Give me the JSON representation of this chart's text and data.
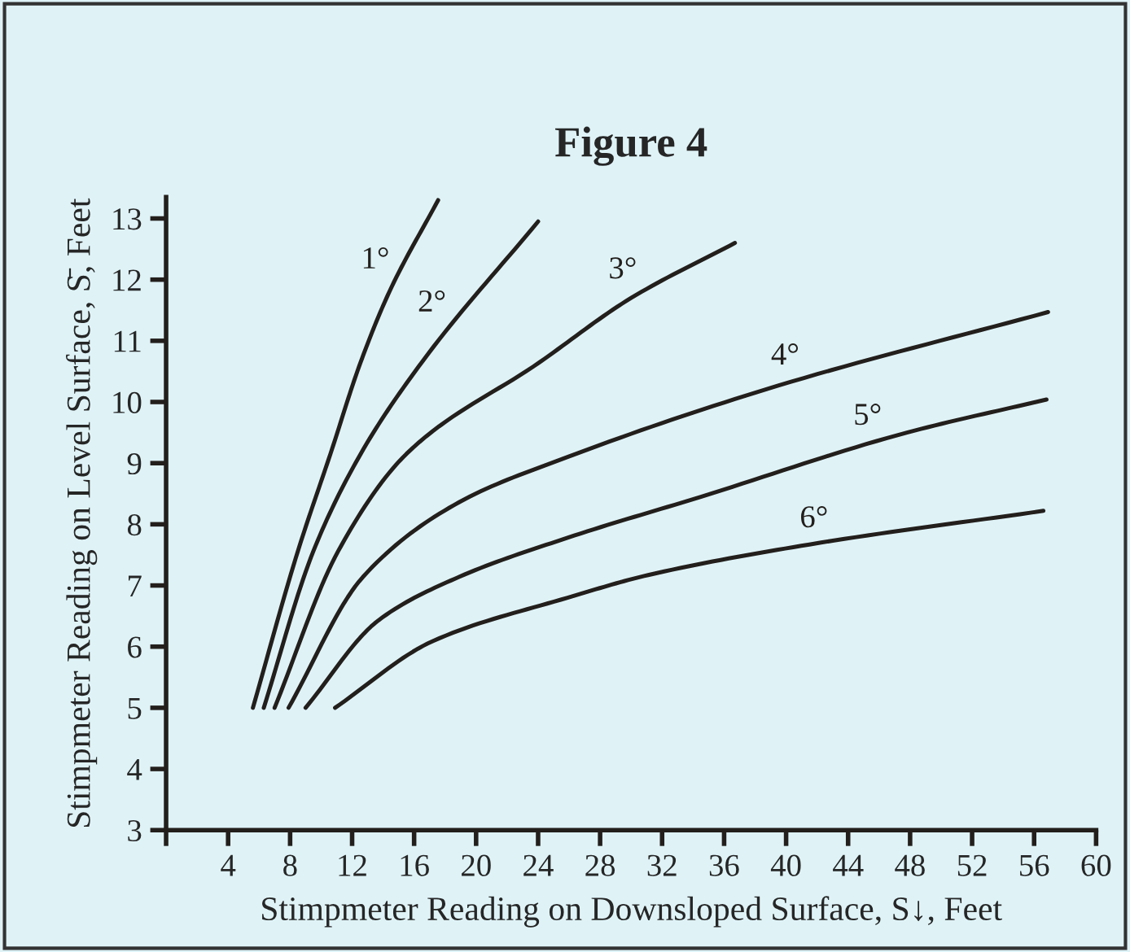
{
  "chart_data": {
    "type": "line",
    "title": "Figure 4",
    "xlabel": "Stimpmeter Reading on Downsloped Surface, S↓, Feet",
    "ylabel": "Stimpmeter Reading on Level Surface, S̄, Feet",
    "series": [
      {
        "name": "1°",
        "color": "#231f1c",
        "x": [
          5.6,
          8.5,
          10.6,
          12.55,
          14.4,
          17.55
        ],
        "values": [
          5.0,
          7.56,
          9.15,
          10.65,
          11.8,
          13.3
        ]
      },
      {
        "name": "2°",
        "color": "#231f1c",
        "x": [
          6.3,
          9.5,
          12.55,
          16.5,
          24.0
        ],
        "values": [
          5.0,
          7.56,
          9.15,
          10.65,
          12.95
        ]
      },
      {
        "name": "3°",
        "color": "#231f1c",
        "x": [
          7.0,
          11.1,
          15.5,
          24.1,
          30.0,
          36.7
        ],
        "values": [
          5.0,
          7.56,
          9.15,
          10.65,
          11.7,
          12.6
        ]
      },
      {
        "name": "4°",
        "color": "#231f1c",
        "x": [
          7.9,
          12.7,
          18.9,
          25.9,
          39.4,
          56.9
        ],
        "values": [
          5.0,
          7.14,
          8.36,
          9.1,
          10.26,
          11.47
        ]
      },
      {
        "name": "5°",
        "color": "#231f1c",
        "x": [
          9.0,
          13.7,
          18.9,
          25.9,
          34.5,
          47.8,
          56.8
        ],
        "values": [
          5.0,
          6.43,
          7.14,
          7.78,
          8.45,
          9.5,
          10.04
        ]
      },
      {
        "name": "6°",
        "color": "#231f1c",
        "x": [
          10.9,
          17.2,
          25.9,
          31.1,
          41.5,
          56.6
        ],
        "values": [
          5.0,
          6.09,
          6.8,
          7.17,
          7.67,
          8.22
        ]
      }
    ],
    "xlim": [
      0,
      60
    ],
    "ylim": [
      3,
      13.35
    ],
    "xticks": [
      {
        "value": 0,
        "label": null
      },
      4,
      8,
      12,
      16,
      20,
      24,
      28,
      32,
      36,
      40,
      44,
      48,
      52,
      56,
      60
    ],
    "yticks": [
      3,
      4,
      5,
      6,
      7,
      8,
      9,
      10,
      11,
      12,
      13
    ],
    "grid": false,
    "legend": false,
    "marker": "none",
    "line_style": "solid"
  }
}
